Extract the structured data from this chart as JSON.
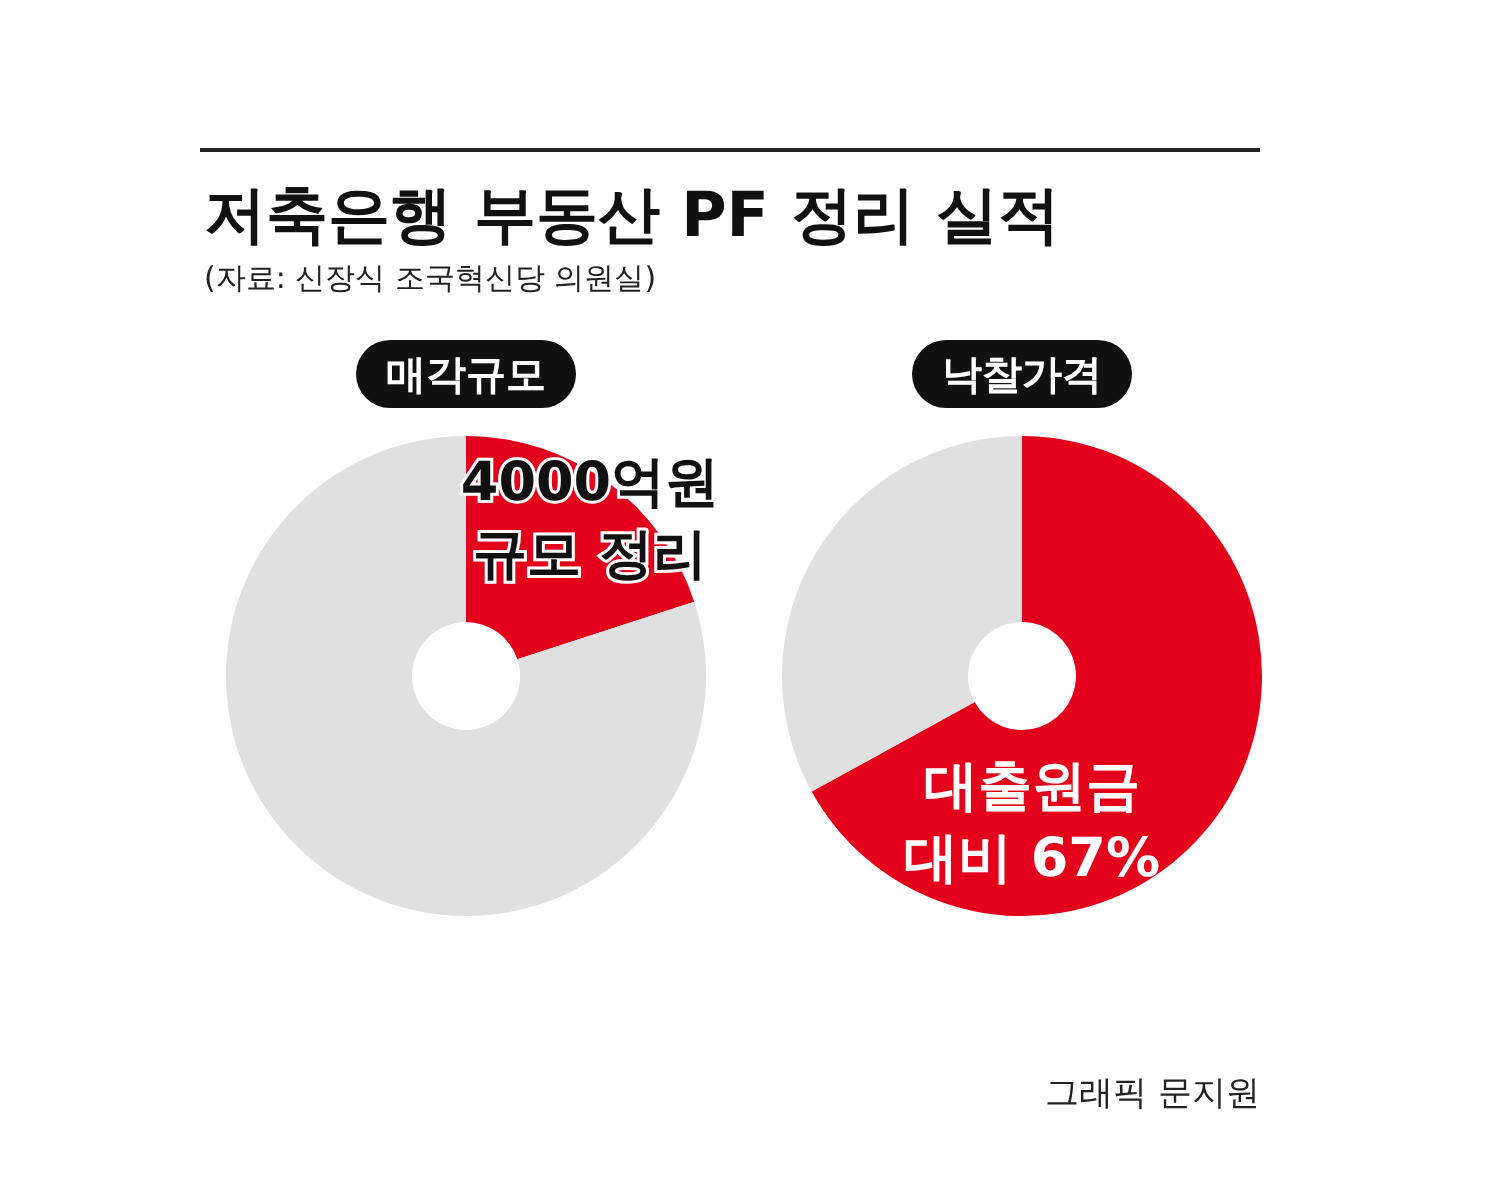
{
  "chart_data": [
    {
      "type": "donut",
      "title": "매각규모",
      "categories": [
        null,
        null
      ],
      "values": [
        20,
        80
      ],
      "colors": [
        "#e2001a",
        "#e0e0e0"
      ],
      "annotations": [
        "저축은행 부동산 PF 정리 실적",
        "(자료: 신장식 조국혁신당 의원실)",
        "4000억원\n규모 정리"
      ]
    },
    {
      "type": "donut",
      "title": "낙찰가격",
      "categories": [
        null,
        null
      ],
      "values": [
        67,
        33
      ],
      "colors": [
        "#e2001a",
        "#e0e0e0"
      ],
      "value_labels": [
        "대출원금\n대비 67%",
        null
      ],
      "annotations": [
        "그래픽 문지원"
      ]
    }
  ]
}
